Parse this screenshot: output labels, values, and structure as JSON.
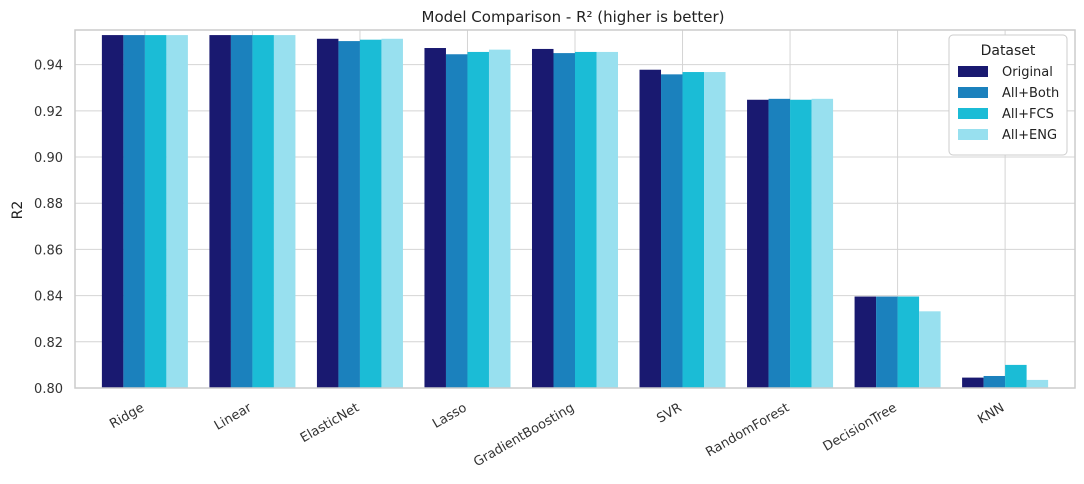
{
  "chart_data": {
    "type": "bar",
    "title": "Model Comparison - R² (higher is better)",
    "xlabel": "",
    "ylabel": "R2",
    "ylim": [
      0.8,
      0.955
    ],
    "yticks": [
      "0.80",
      "0.82",
      "0.84",
      "0.86",
      "0.88",
      "0.90",
      "0.92",
      "0.94"
    ],
    "grid": true,
    "legend": {
      "title": "Dataset",
      "placement": "top-right"
    },
    "categories": [
      "Ridge",
      "Linear",
      "ElasticNet",
      "Lasso",
      "GradientBoosting",
      "SVR",
      "RandomForest",
      "DecisionTree",
      "KNN"
    ],
    "series": [
      {
        "name": "Original",
        "color": "#191970",
        "values": [
          0.9528,
          0.9528,
          0.9512,
          0.9472,
          0.9468,
          0.9378,
          0.9248,
          0.8396,
          0.8045
        ]
      },
      {
        "name": "All+Both",
        "color": "#1b81bd",
        "values": [
          0.9528,
          0.9528,
          0.9502,
          0.9445,
          0.945,
          0.9358,
          0.9252,
          0.8396,
          0.8052
        ]
      },
      {
        "name": "All+FCS",
        "color": "#1bbcd6",
        "values": [
          0.9528,
          0.9528,
          0.9508,
          0.9455,
          0.9455,
          0.9368,
          0.9248,
          0.8396,
          0.81
        ]
      },
      {
        "name": "All+ENG",
        "color": "#98e0ef",
        "values": [
          0.9528,
          0.9528,
          0.9512,
          0.9465,
          0.9455,
          0.9368,
          0.9252,
          0.8332,
          0.8035
        ]
      }
    ]
  }
}
